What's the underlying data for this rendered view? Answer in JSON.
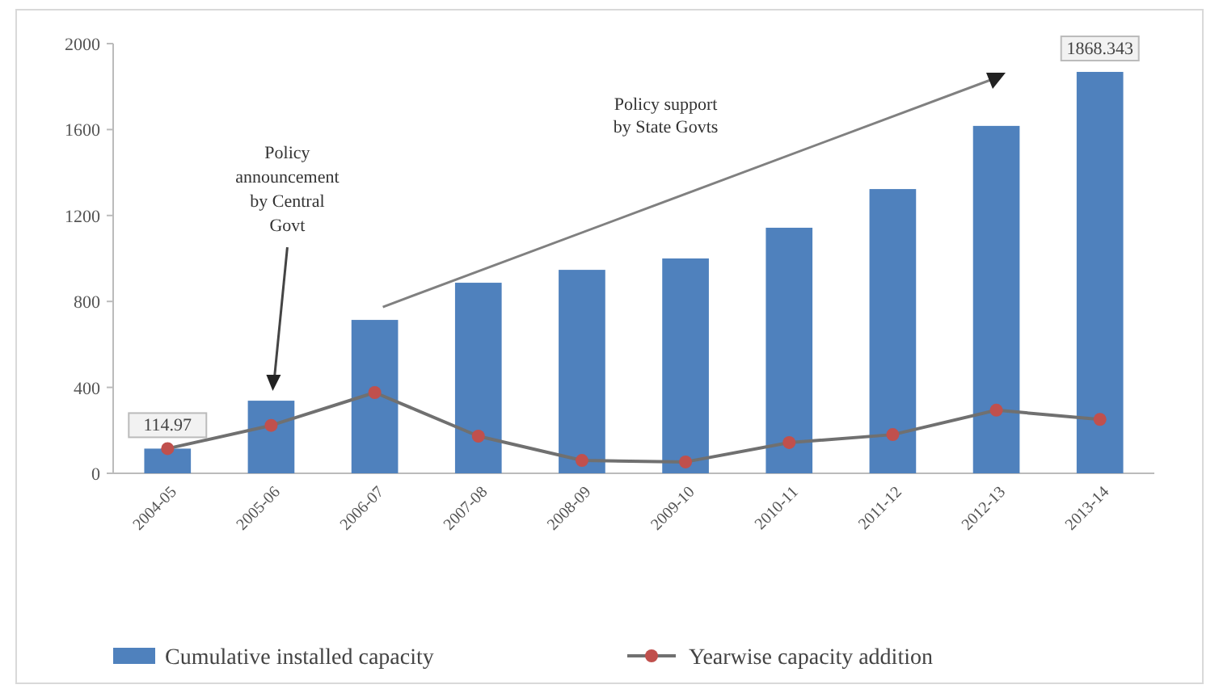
{
  "chart_data": {
    "type": "bar",
    "categories": [
      "2004-05",
      "2005-06",
      "2006-07",
      "2007-08",
      "2008-09",
      "2009-10",
      "2010-11",
      "2011-12",
      "2012-13",
      "2013-14"
    ],
    "series": [
      {
        "name": "Cumulative installed capacity",
        "color": "#4f81bd",
        "values": [
          114.97,
          338,
          714,
          887,
          947,
          1000,
          1143,
          1323,
          1617,
          1868.343
        ],
        "value_labels": [
          "114.97",
          null,
          null,
          null,
          null,
          null,
          null,
          null,
          null,
          "1868.343"
        ]
      },
      {
        "name": "Yearwise capacity addition",
        "type": "line",
        "color": "#c0504d",
        "marker": "circle",
        "values": [
          115,
          223,
          376,
          173,
          60,
          53,
          143,
          180,
          294,
          251
        ]
      }
    ],
    "ylim": [
      0,
      2000
    ],
    "yticks": [
      0,
      400,
      800,
      1200,
      1600,
      2000
    ],
    "grid": false,
    "legend": "bottom",
    "annotations": [
      "Policy announcement by Central Govt",
      "Policy support by State Govts"
    ]
  }
}
